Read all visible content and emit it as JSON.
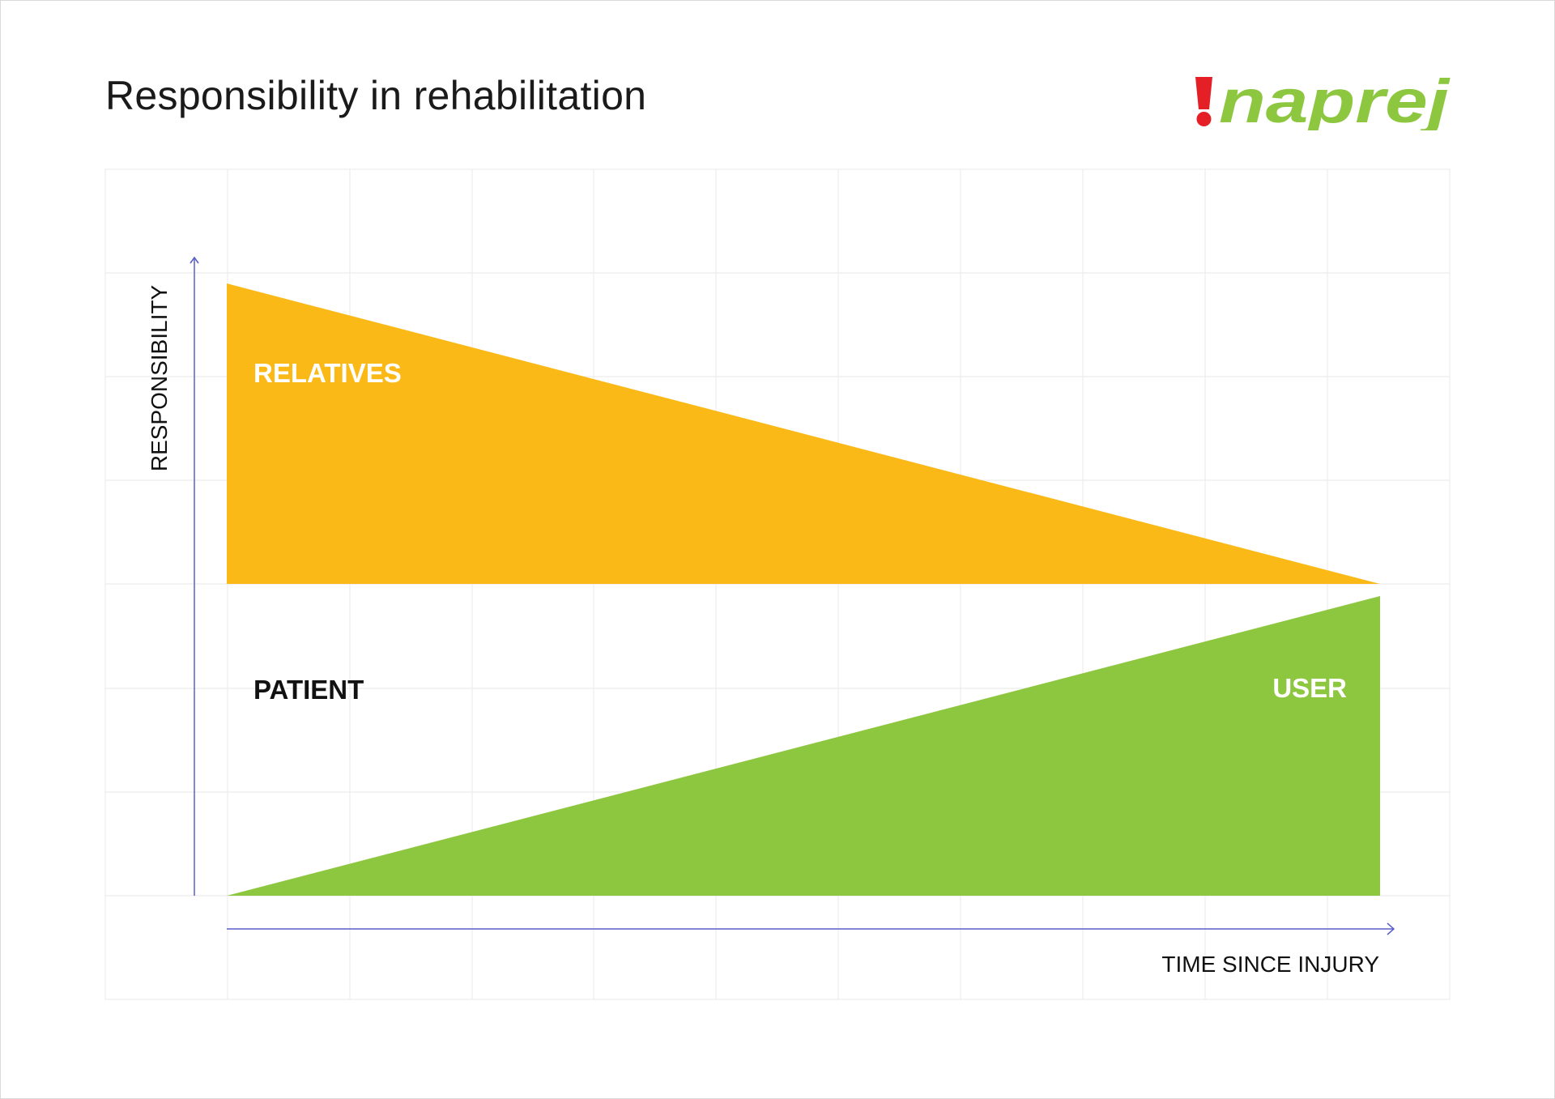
{
  "title": "Responsibility in rehabilitation",
  "logo": {
    "mark": "!",
    "wordmark": "naprej",
    "mark_color": "#e41f26",
    "word_color": "#8dc63f"
  },
  "diagram": {
    "y_axis_label": "RESPONSIBILITY",
    "x_axis_label": "TIME SINCE INJURY",
    "regions": {
      "relatives": {
        "label": "RELATIVES",
        "color": "#fbb917",
        "label_color": "#ffffff"
      },
      "patient": {
        "label": "PATIENT",
        "color": "#ffffff",
        "label_color": "#111111"
      },
      "user": {
        "label": "USER",
        "color": "#8dc63f",
        "label_color": "#ffffff"
      }
    },
    "axis_color": "#5a5fc8",
    "grid_color": "#ececec"
  }
}
